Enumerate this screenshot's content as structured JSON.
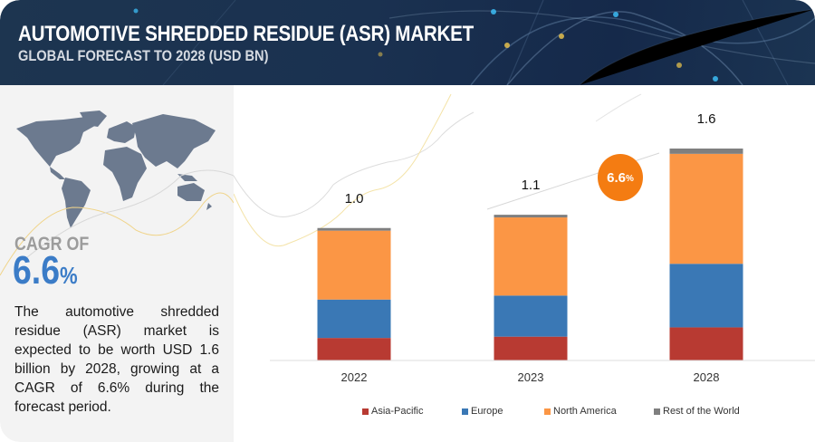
{
  "header": {
    "title": "AUTOMOTIVE SHREDDED RESIDUE (ASR) MARKET",
    "subtitle": "GLOBAL FORECAST TO 2028 (USD BN)"
  },
  "left_panel": {
    "map_icon": "world-map-icon",
    "cagr_label": "CAGR OF",
    "cagr_number": "6.6",
    "cagr_percent": "%",
    "description": "The automotive shredded residue (ASR) market is expected to be worth USD 1.6 billion by 2028, growing at a CAGR of 6.6% during the forecast period."
  },
  "growth_bubble": {
    "number": "6.6",
    "percent": "%"
  },
  "colors": {
    "header_bg": "#1a3150",
    "cagr_blue": "#3b7cc7",
    "bubble_orange": "#f47c12"
  },
  "chart_data": {
    "type": "bar",
    "stacked": true,
    "title": "AUTOMOTIVE SHREDDED RESIDUE (ASR) MARKET",
    "subtitle": "GLOBAL FORECAST TO 2028 (USD BN)",
    "xlabel": "",
    "ylabel": "",
    "categories": [
      "2022",
      "2023",
      "2028"
    ],
    "totals": [
      "1.0",
      "1.1",
      "1.6"
    ],
    "total_values": [
      1.0,
      1.1,
      1.6
    ],
    "series": [
      {
        "name": "Asia-Pacific",
        "color": "#b83a32",
        "values": [
          0.17,
          0.18,
          0.25
        ]
      },
      {
        "name": "Europe",
        "color": "#3a78b5",
        "values": [
          0.29,
          0.31,
          0.48
        ]
      },
      {
        "name": "North America",
        "color": "#fb9645",
        "values": [
          0.52,
          0.59,
          0.83
        ]
      },
      {
        "name": "Rest of the World",
        "color": "#7f7f7f",
        "values": [
          0.02,
          0.02,
          0.04
        ]
      }
    ],
    "annotation": {
      "text": "6.6%",
      "meaning": "CAGR 2023-2028"
    },
    "grid": false,
    "legend": "bottom",
    "ylim": [
      0,
      1.6
    ]
  }
}
